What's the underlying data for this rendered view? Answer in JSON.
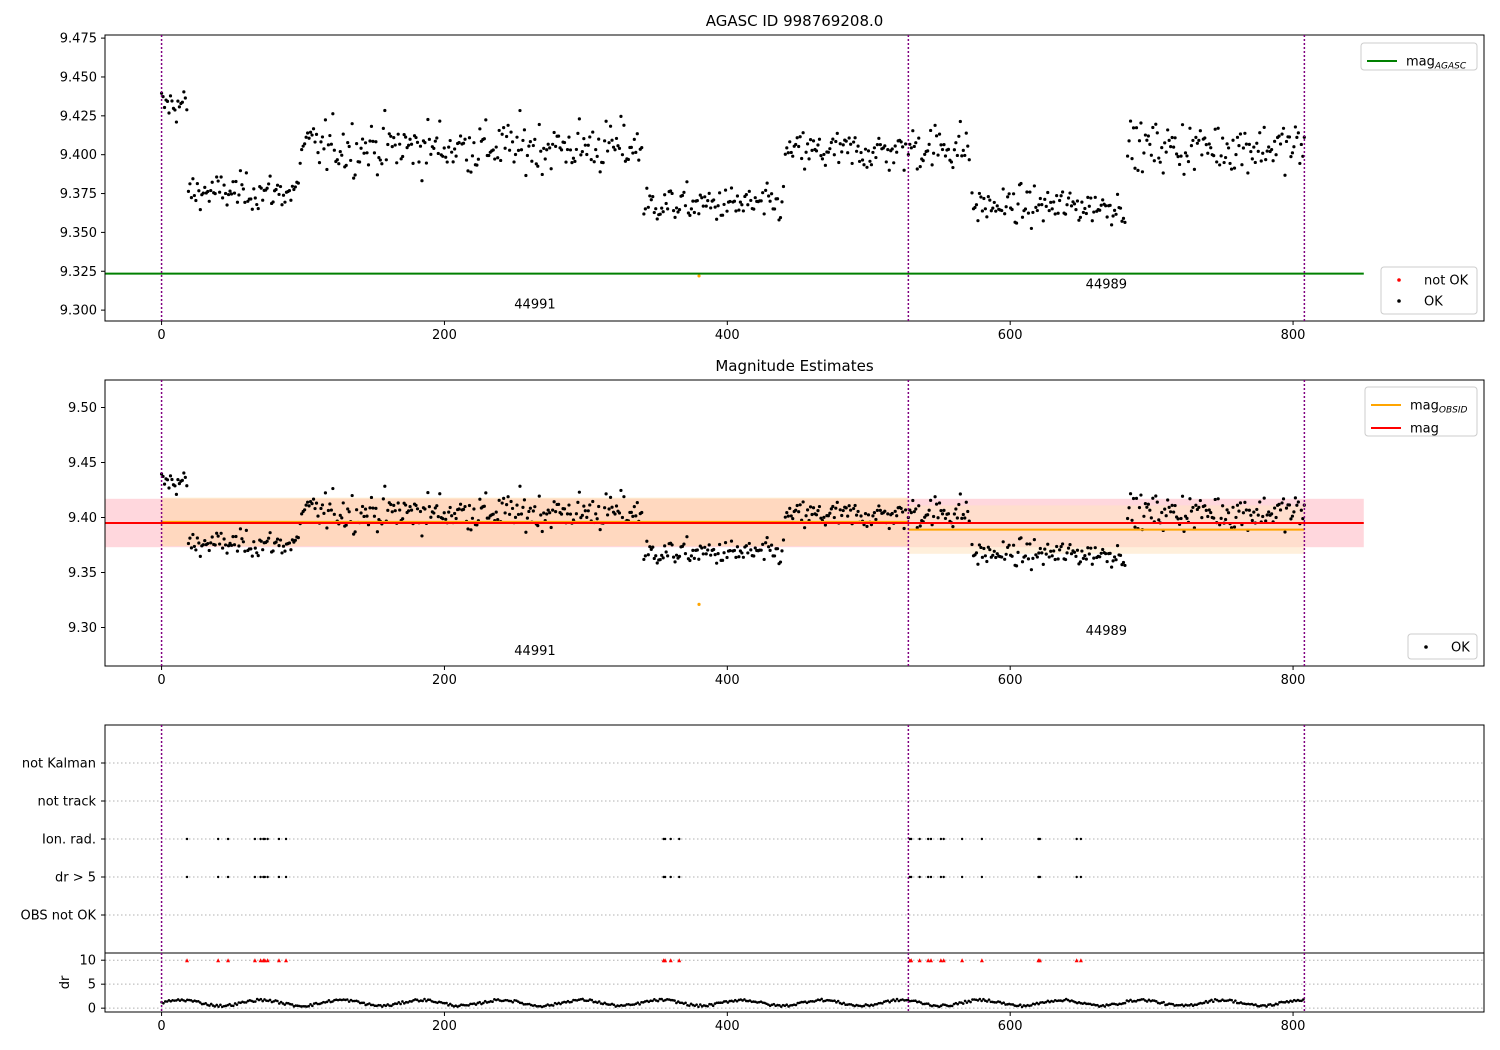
{
  "chart_data": [
    {
      "type": "scatter",
      "title": "AGASC ID 998769208.0",
      "xlim": [
        -40,
        935
      ],
      "ylim": [
        9.293,
        9.477
      ],
      "x_ticks": [
        0,
        200,
        400,
        600,
        800
      ],
      "y_ticks": [
        9.3,
        9.325,
        9.35,
        9.375,
        9.4,
        9.425,
        9.45,
        9.475
      ],
      "y_tick_labels": [
        "9.300",
        "9.325",
        "9.350",
        "9.375",
        "9.400",
        "9.425",
        "9.450",
        "9.475"
      ],
      "obsid_boundaries": [
        0,
        528,
        808
      ],
      "obsid_labels": [
        {
          "text": "44991",
          "x": 264,
          "y": 9.301
        },
        {
          "text": "44989",
          "x": 668,
          "y": 9.314
        }
      ],
      "lines": [
        {
          "name": "mag",
          "sub": "AGASC",
          "y": 9.3235,
          "x_range": [
            -40,
            850
          ],
          "color": "#008000"
        }
      ],
      "points_not_ok": [
        {
          "x": 380,
          "y": 9.322,
          "color": "#ffa500"
        }
      ],
      "legend_lines": [
        {
          "label": "mag",
          "sub": "AGASC",
          "color": "#008000"
        }
      ],
      "legend_markers": [
        {
          "label": "not OK",
          "color": "#ff0000"
        },
        {
          "label": "OK",
          "color": "#000000"
        }
      ],
      "ok_series": "mag"
    },
    {
      "type": "scatter",
      "title": "Magnitude Estimates",
      "xlim": [
        -40,
        935
      ],
      "ylim": [
        9.265,
        9.525
      ],
      "x_ticks": [
        0,
        200,
        400,
        600,
        800
      ],
      "y_ticks": [
        9.3,
        9.35,
        9.4,
        9.45,
        9.5
      ],
      "y_tick_labels": [
        "9.30",
        "9.35",
        "9.40",
        "9.45",
        "9.50"
      ],
      "obsid_boundaries": [
        0,
        528,
        808
      ],
      "obsid_labels": [
        {
          "text": "44991",
          "x": 264,
          "y": 9.275
        },
        {
          "text": "44989",
          "x": 668,
          "y": 9.293
        }
      ],
      "lines": [
        {
          "name": "mag",
          "sub": "OBSID",
          "y": 9.396,
          "x_range": [
            0,
            528
          ],
          "color": "#ffa500"
        },
        {
          "name": "mag",
          "sub": "OBSID",
          "y": 9.389,
          "x_range": [
            528,
            808
          ],
          "color": "#ffa500"
        },
        {
          "name": "mag",
          "sub": "",
          "y": 9.395,
          "x_range": [
            -40,
            850
          ],
          "color": "#ff0000"
        }
      ],
      "bands": [
        {
          "y_range": [
            9.373,
            9.417
          ],
          "x_range": [
            -40,
            850
          ],
          "color": "#ffb6c1"
        },
        {
          "y_range": [
            9.374,
            9.418
          ],
          "x_range": [
            0,
            528
          ],
          "color": "#ffd9a6"
        },
        {
          "y_range": [
            9.367,
            9.411
          ],
          "x_range": [
            528,
            808
          ],
          "color": "#ffe3bf"
        }
      ],
      "points_not_ok": [
        {
          "x": 380,
          "y": 9.321,
          "color": "#ffa500"
        }
      ],
      "legend_lines": [
        {
          "label": "mag",
          "sub": "OBSID",
          "color": "#ffa500"
        },
        {
          "label": "mag",
          "sub": "",
          "color": "#ff0000"
        }
      ],
      "legend_markers": [
        {
          "label": "OK",
          "color": "#000000"
        }
      ],
      "ok_series": "mag"
    },
    {
      "type": "scatter",
      "title": "",
      "xlim": [
        -40,
        935
      ],
      "categories": [
        "OBS not OK",
        "dr > 5",
        "Ion. rad.",
        "not track",
        "not Kalman"
      ],
      "x_ticks": [
        0,
        200,
        400,
        600,
        800
      ],
      "obsid_boundaries": [
        0,
        528,
        808
      ],
      "flag_x": [
        18,
        40,
        47,
        66,
        70,
        72,
        73,
        75,
        83,
        88,
        355,
        356,
        360,
        366,
        529,
        530,
        536,
        542,
        544,
        551,
        553,
        566,
        580,
        620,
        621,
        647,
        650
      ],
      "flagged_categories": [
        "dr > 5",
        "Ion. rad."
      ],
      "ylabel_bottom": "dr",
      "dr_ylim": [
        -0.8,
        11.5
      ],
      "dr_ticks": [
        0,
        5,
        10
      ],
      "dr_flag_value": 10,
      "dr_flag_color": "#ff0000",
      "ok_series": "dr"
    }
  ]
}
